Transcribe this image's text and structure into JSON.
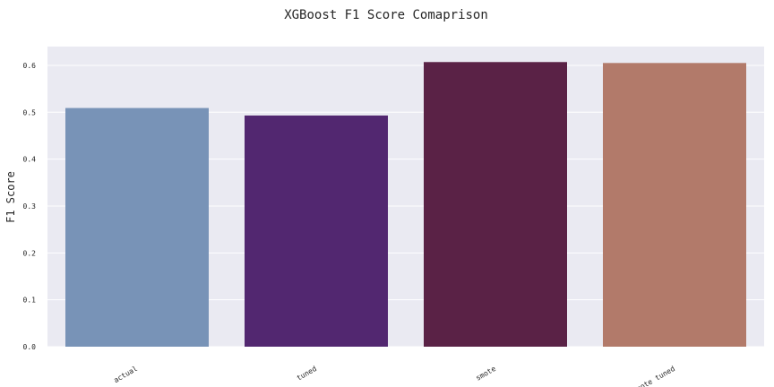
{
  "chart_data": {
    "type": "bar",
    "title": "XGBoost F1 Score Comaprison",
    "xlabel": "",
    "ylabel": "F1 Score",
    "categories": [
      "actual",
      "tuned",
      "smote",
      "smote tuned"
    ],
    "values": [
      0.509,
      0.493,
      0.607,
      0.605
    ],
    "ylim": [
      0,
      0.64
    ],
    "yticks": [
      "0.0",
      "0.1",
      "0.2",
      "0.3",
      "0.4",
      "0.5",
      "0.6"
    ],
    "bar_colors": [
      "#7893b7",
      "#522770",
      "#5a2246",
      "#b27a6a"
    ],
    "background_color": "#eaeaf2",
    "grid": true
  }
}
